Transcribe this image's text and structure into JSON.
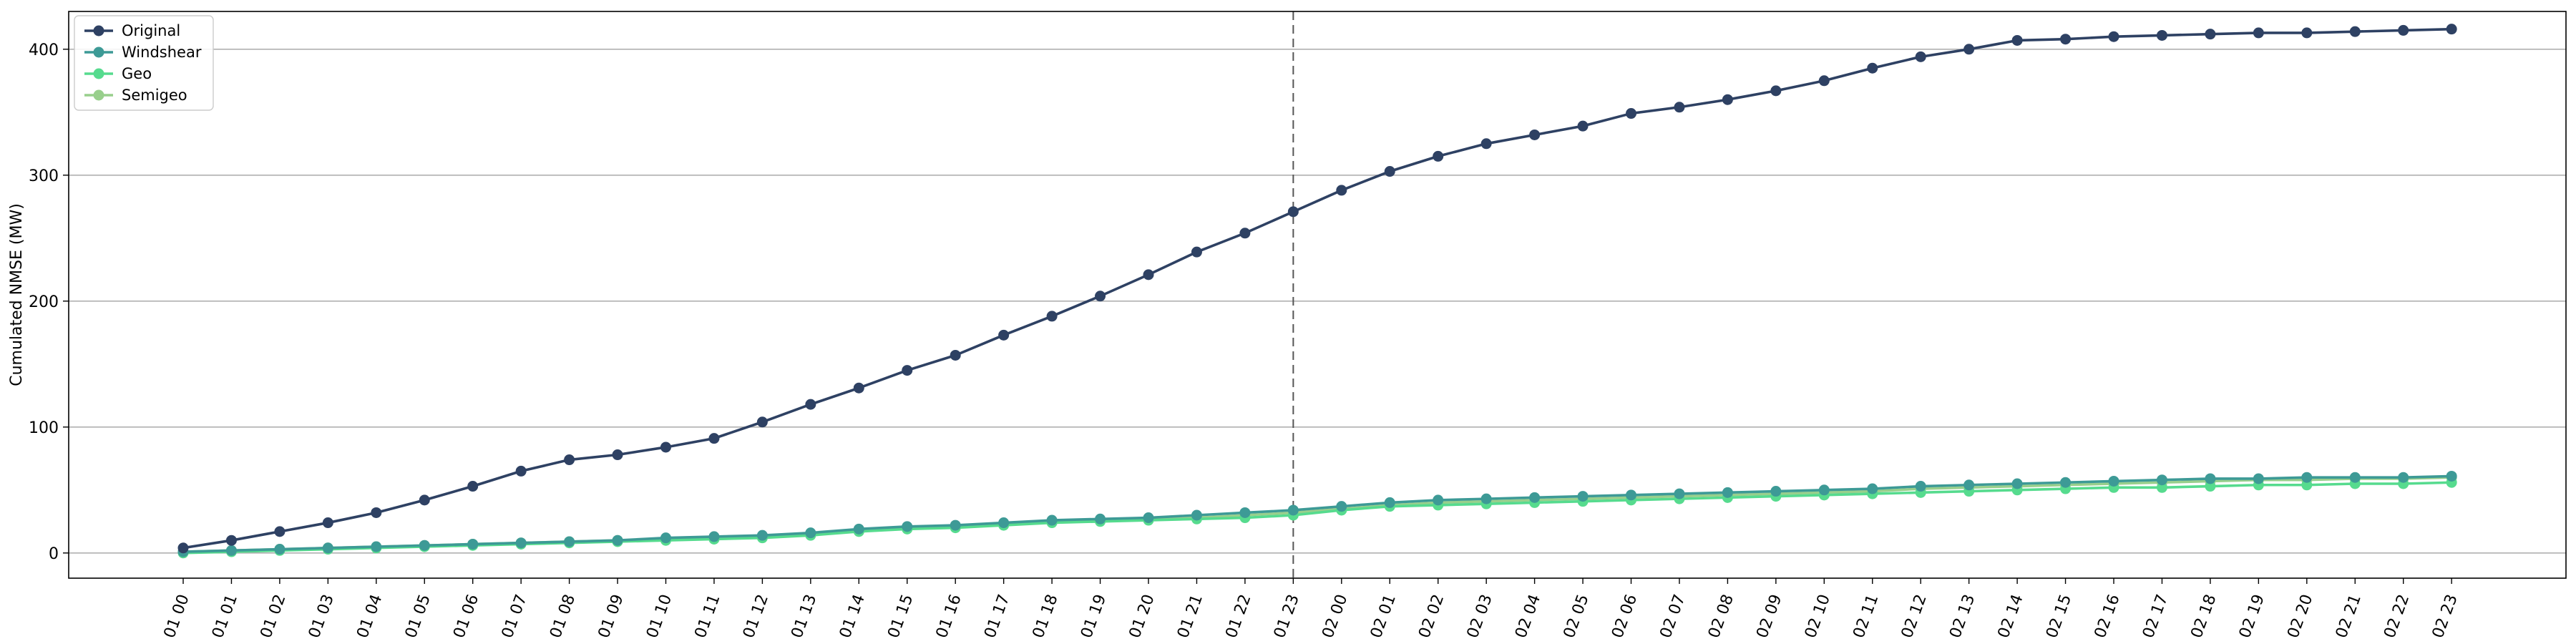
{
  "chart_data": {
    "type": "line",
    "title": "",
    "xlabel": "",
    "ylabel": "Cumulated NMSE (MW)",
    "ylim": [
      -20,
      430
    ],
    "yticks": [
      0,
      100,
      200,
      300,
      400
    ],
    "grid": "horizontal",
    "legend": "top-left",
    "vline_at": "01 23",
    "categories": [
      "01 00",
      "01 01",
      "01 02",
      "01 03",
      "01 04",
      "01 05",
      "01 06",
      "01 07",
      "01 08",
      "01 09",
      "01 10",
      "01 11",
      "01 12",
      "01 13",
      "01 14",
      "01 15",
      "01 16",
      "01 17",
      "01 18",
      "01 19",
      "01 20",
      "01 21",
      "01 22",
      "01 23",
      "02 00",
      "02 01",
      "02 02",
      "02 03",
      "02 04",
      "02 05",
      "02 06",
      "02 07",
      "02 08",
      "02 09",
      "02 10",
      "02 11",
      "02 12",
      "02 13",
      "02 14",
      "02 15",
      "02 16",
      "02 17",
      "02 18",
      "02 19",
      "02 20",
      "02 21",
      "02 22",
      "02 23"
    ],
    "series": [
      {
        "name": "Original",
        "color": "#2e4163",
        "values": [
          4,
          10,
          17,
          24,
          32,
          42,
          53,
          65,
          74,
          78,
          84,
          91,
          104,
          118,
          131,
          145,
          157,
          173,
          188,
          204,
          221,
          239,
          254,
          271,
          288,
          303,
          315,
          325,
          332,
          339,
          349,
          354,
          360,
          367,
          375,
          385,
          394,
          400,
          407,
          408,
          410,
          411,
          412,
          413,
          413,
          414,
          415,
          416
        ]
      },
      {
        "name": "Windshear",
        "color": "#3d9a96",
        "values": [
          1,
          2,
          3,
          4,
          5,
          6,
          7,
          8,
          9,
          10,
          12,
          13,
          14,
          16,
          19,
          21,
          22,
          24,
          26,
          27,
          28,
          30,
          32,
          34,
          37,
          40,
          42,
          43,
          44,
          45,
          46,
          47,
          48,
          49,
          50,
          51,
          53,
          54,
          55,
          56,
          57,
          58,
          59,
          59,
          60,
          60,
          60,
          61
        ]
      },
      {
        "name": "Geo",
        "color": "#56db8e",
        "values": [
          0,
          1,
          2,
          3,
          4,
          5,
          6,
          7,
          8,
          9,
          10,
          11,
          12,
          14,
          17,
          19,
          20,
          22,
          24,
          25,
          26,
          27,
          28,
          30,
          34,
          37,
          38,
          39,
          40,
          41,
          42,
          43,
          44,
          45,
          46,
          47,
          48,
          49,
          50,
          51,
          52,
          52,
          53,
          54,
          54,
          55,
          55,
          56
        ]
      },
      {
        "name": "Semigeo",
        "color": "#98cf8c",
        "values": [
          1,
          2,
          3,
          4,
          5,
          6,
          7,
          8,
          9,
          10,
          11,
          12,
          13,
          15,
          18,
          20,
          21,
          23,
          25,
          26,
          27,
          28,
          30,
          32,
          35,
          38,
          40,
          41,
          42,
          43,
          44,
          45,
          46,
          47,
          48,
          49,
          51,
          52,
          53,
          54,
          55,
          56,
          57,
          58,
          58,
          59,
          59,
          60
        ]
      }
    ]
  }
}
